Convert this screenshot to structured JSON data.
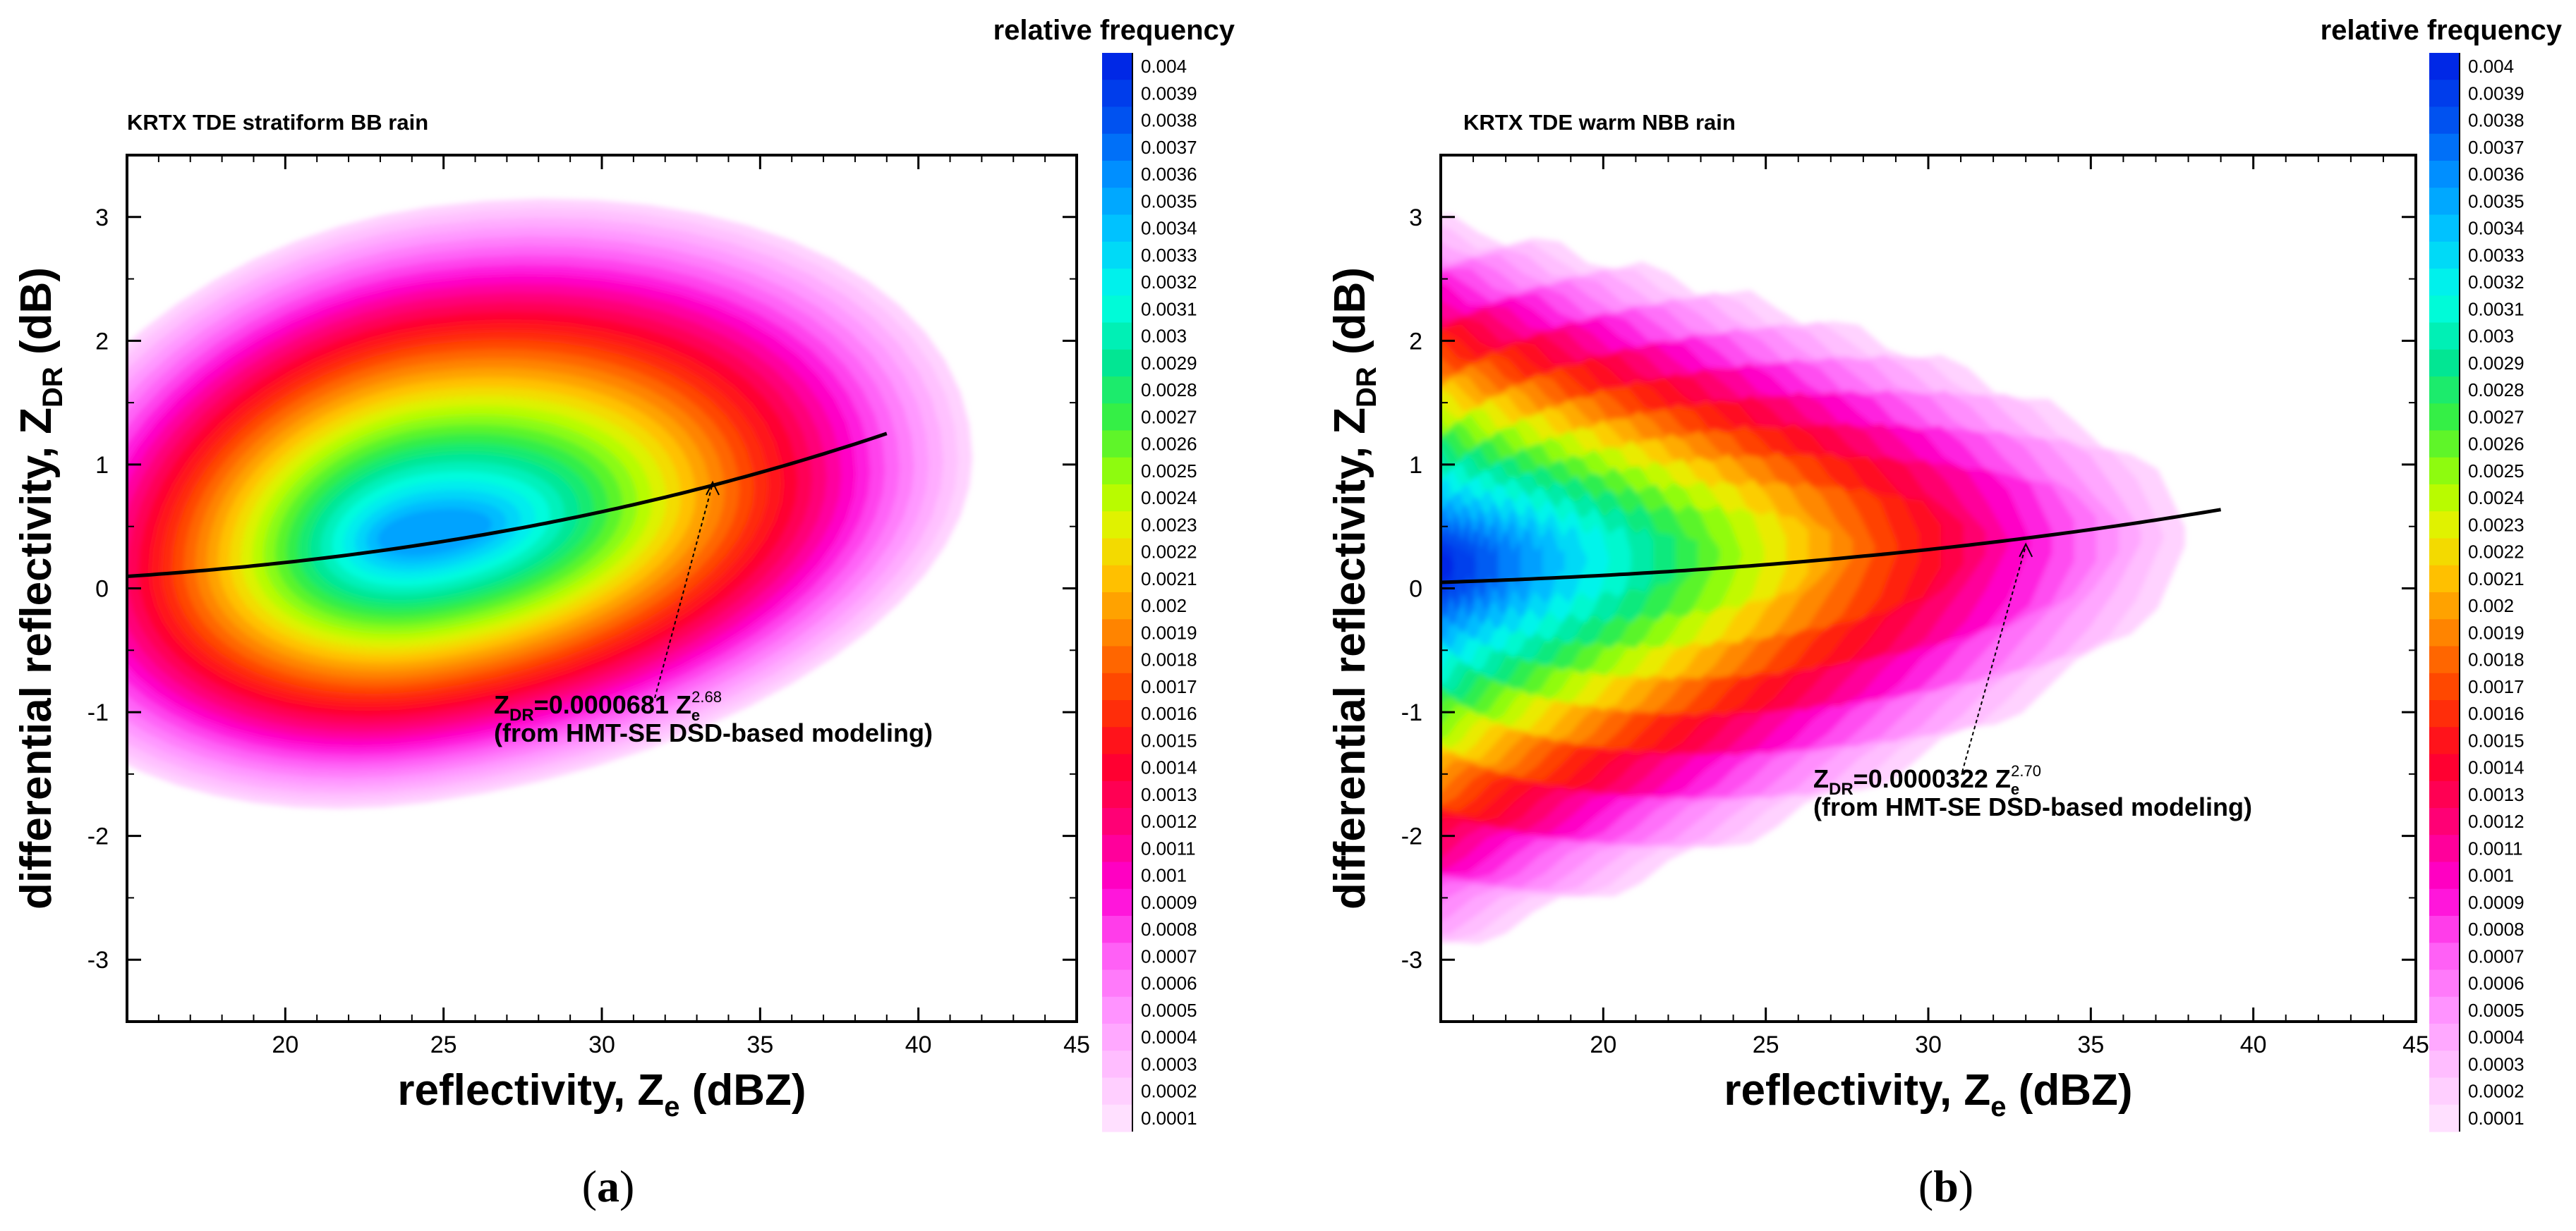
{
  "chart_data": [
    {
      "type": "heatmap",
      "panel_label": "a",
      "title": "KRTX TDE stratiform BB rain",
      "xlabel": "reflectivity, Ze (dBZ)",
      "ylabel": "differential reflectivity, ZDR (dB)",
      "xlim": [
        15,
        45
      ],
      "ylim": [
        -3.5,
        3.5
      ],
      "x_ticks": [
        20,
        25,
        30,
        35,
        40,
        45
      ],
      "y_ticks": [
        -3,
        -2,
        -1,
        0,
        1,
        2,
        3
      ],
      "colorbar_title": "relative frequency",
      "colorbar_levels": [
        "0.004",
        "0.0039",
        "0.0038",
        "0.0037",
        "0.0036",
        "0.0035",
        "0.0034",
        "0.0033",
        "0.0032",
        "0.0031",
        "0.003",
        "0.0029",
        "0.0028",
        "0.0027",
        "0.0026",
        "0.0025",
        "0.0024",
        "0.0023",
        "0.0022",
        "0.0021",
        "0.002",
        "0.0019",
        "0.0018",
        "0.0017",
        "0.0016",
        "0.0015",
        "0.0014",
        "0.0013",
        "0.0012",
        "0.0011",
        "0.001",
        "0.0009",
        "0.0008",
        "0.0007",
        "0.0006",
        "0.0005",
        "0.0004",
        "0.0003",
        "0.0002",
        "0.0001"
      ],
      "density_peak": {
        "x": 24.5,
        "y": 0.45,
        "max_frequency": 0.0035
      },
      "fit_curve": {
        "equation": "ZDR=0.0000681 Ze^2.68",
        "coefficient": 6.81e-05,
        "exponent": 2.68,
        "x_range": [
          15,
          39
        ]
      },
      "fit_label_line1": "Z",
      "fit_label_sub": "DR",
      "fit_label_eq": "=0.0000681 Z",
      "fit_label_esub": "e",
      "fit_label_exp": "2.68",
      "fit_label_line2": "(from HMT-SE DSD-based modeling)",
      "annotation_arrow_to": {
        "x": 33.5,
        "y": 0.88
      }
    },
    {
      "type": "heatmap",
      "panel_label": "b",
      "title": "KRTX TDE warm NBB rain",
      "xlabel": "reflectivity, Ze (dBZ)",
      "ylabel": "differential reflectivity, ZDR (dB)",
      "xlim": [
        15,
        45
      ],
      "ylim": [
        -3.5,
        3.5
      ],
      "x_ticks": [
        20,
        25,
        30,
        35,
        40,
        45
      ],
      "y_ticks": [
        -3,
        -2,
        -1,
        0,
        1,
        2,
        3
      ],
      "colorbar_title": "relative frequency",
      "colorbar_levels": [
        "0.004",
        "0.0039",
        "0.0038",
        "0.0037",
        "0.0036",
        "0.0035",
        "0.0034",
        "0.0033",
        "0.0032",
        "0.0031",
        "0.003",
        "0.0029",
        "0.0028",
        "0.0027",
        "0.0026",
        "0.0025",
        "0.0024",
        "0.0023",
        "0.0022",
        "0.0021",
        "0.002",
        "0.0019",
        "0.0018",
        "0.0017",
        "0.0016",
        "0.0015",
        "0.0014",
        "0.0013",
        "0.0012",
        "0.0011",
        "0.001",
        "0.0009",
        "0.0008",
        "0.0007",
        "0.0006",
        "0.0005",
        "0.0004",
        "0.0003",
        "0.0002",
        "0.0001"
      ],
      "density_peak": {
        "x": 15.5,
        "y": 0.2,
        "max_frequency": 0.004
      },
      "fit_curve": {
        "equation": "ZDR=0.0000322 Ze^2.70",
        "coefficient": 3.22e-05,
        "exponent": 2.7,
        "x_range": [
          15,
          39
        ]
      },
      "fit_label_line1": "Z",
      "fit_label_sub": "DR",
      "fit_label_eq": "=0.0000322 Z",
      "fit_label_esub": "e",
      "fit_label_exp": "2.70",
      "fit_label_line2": "(from HMT-SE DSD-based modeling)",
      "annotation_arrow_to": {
        "x": 33,
        "y": 0.38
      }
    }
  ],
  "captions": [
    "(a)",
    "(b)"
  ],
  "axis_text": {
    "ylabel_main": "differential reflectivity, Z",
    "ylabel_sub": "DR",
    "ylabel_end": " (dB)",
    "xlabel_main": "reflectivity, Z",
    "xlabel_sub": "e",
    "xlabel_end": " (dBZ)"
  }
}
